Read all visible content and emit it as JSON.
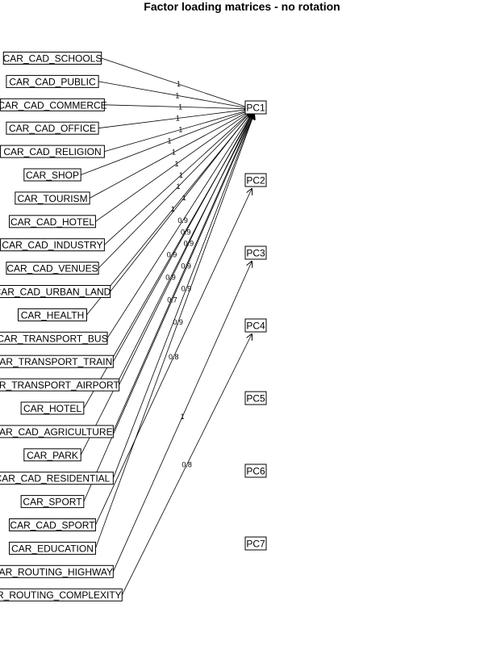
{
  "title": "Factor loading matrices - no rotation",
  "variables": [
    "CAR_CAD_SCHOOLS",
    "CAR_CAD_PUBLIC",
    "CAR_CAD_COMMERCE",
    "CAR_CAD_OFFICE",
    "CAR_CAD_RELIGION",
    "CAR_SHOP",
    "CAR_TOURISM",
    "CAR_CAD_HOTEL",
    "CAR_CAD_INDUSTRY",
    "CAR_CAD_VENUES",
    "CAR_CAD_URBAN_LAND",
    "CAR_HEALTH",
    "CAR_TRANSPORT_BUS",
    "CAR_TRANSPORT_TRAIN",
    "CAR_TRANSPORT_AIRPORT",
    "CAR_HOTEL",
    "CAR_CAD_AGRICULTURE",
    "CAR_PARK",
    "CAR_CAD_RESIDENTIAL",
    "CAR_SPORT",
    "CAR_CAD_SPORT",
    "CAR_EDUCATION",
    "CAR_ROUTING_HIGHWAY",
    "CAR_ROUTING_COMPLEXITY"
  ],
  "factors": [
    "PC1",
    "PC2",
    "PC3",
    "PC4",
    "PC5",
    "PC6",
    "PC7"
  ],
  "loadings": [
    {
      "from": "CAR_CAD_SCHOOLS",
      "to": "PC1",
      "value": "1"
    },
    {
      "from": "CAR_CAD_PUBLIC",
      "to": "PC1",
      "value": "1"
    },
    {
      "from": "CAR_CAD_COMMERCE",
      "to": "PC1",
      "value": "1"
    },
    {
      "from": "CAR_CAD_OFFICE",
      "to": "PC1",
      "value": "1"
    },
    {
      "from": "CAR_CAD_RELIGION",
      "to": "PC1",
      "value": "1"
    },
    {
      "from": "CAR_SHOP",
      "to": "PC1",
      "value": "1"
    },
    {
      "from": "CAR_TOURISM",
      "to": "PC1",
      "value": "1"
    },
    {
      "from": "CAR_CAD_HOTEL",
      "to": "PC1",
      "value": "1"
    },
    {
      "from": "CAR_CAD_INDUSTRY",
      "to": "PC1",
      "value": "1"
    },
    {
      "from": "CAR_CAD_VENUES",
      "to": "PC1",
      "value": "1"
    },
    {
      "from": "CAR_CAD_URBAN_LAND",
      "to": "PC1",
      "value": "1"
    },
    {
      "from": "CAR_HEALTH",
      "to": "PC1",
      "value": "1"
    },
    {
      "from": "CAR_TRANSPORT_BUS",
      "to": "PC1",
      "value": "0.9"
    },
    {
      "from": "CAR_TRANSPORT_TRAIN",
      "to": "PC1",
      "value": "0.9"
    },
    {
      "from": "CAR_TRANSPORT_AIRPORT",
      "to": "PC1",
      "value": "0.9"
    },
    {
      "from": "CAR_HOTEL",
      "to": "PC1",
      "value": "0.9"
    },
    {
      "from": "CAR_CAD_AGRICULTURE",
      "to": "PC1",
      "value": "0.9"
    },
    {
      "from": "CAR_PARK",
      "to": "PC1",
      "value": "0.9"
    },
    {
      "from": "CAR_CAD_RESIDENTIAL",
      "to": "PC1",
      "value": "0.9"
    },
    {
      "from": "CAR_SPORT",
      "to": "PC1",
      "value": "0.7"
    },
    {
      "from": "CAR_CAD_SPORT",
      "to": "PC2",
      "value": "0.8"
    },
    {
      "from": "CAR_EDUCATION",
      "to": "PC1",
      "value": "0.9"
    },
    {
      "from": "CAR_ROUTING_HIGHWAY",
      "to": "PC3",
      "value": "1"
    },
    {
      "from": "CAR_ROUTING_COMPLEXITY",
      "to": "PC4",
      "value": "0.8"
    }
  ],
  "colors": {
    "background": "#ffffff",
    "stroke": "#000000"
  }
}
